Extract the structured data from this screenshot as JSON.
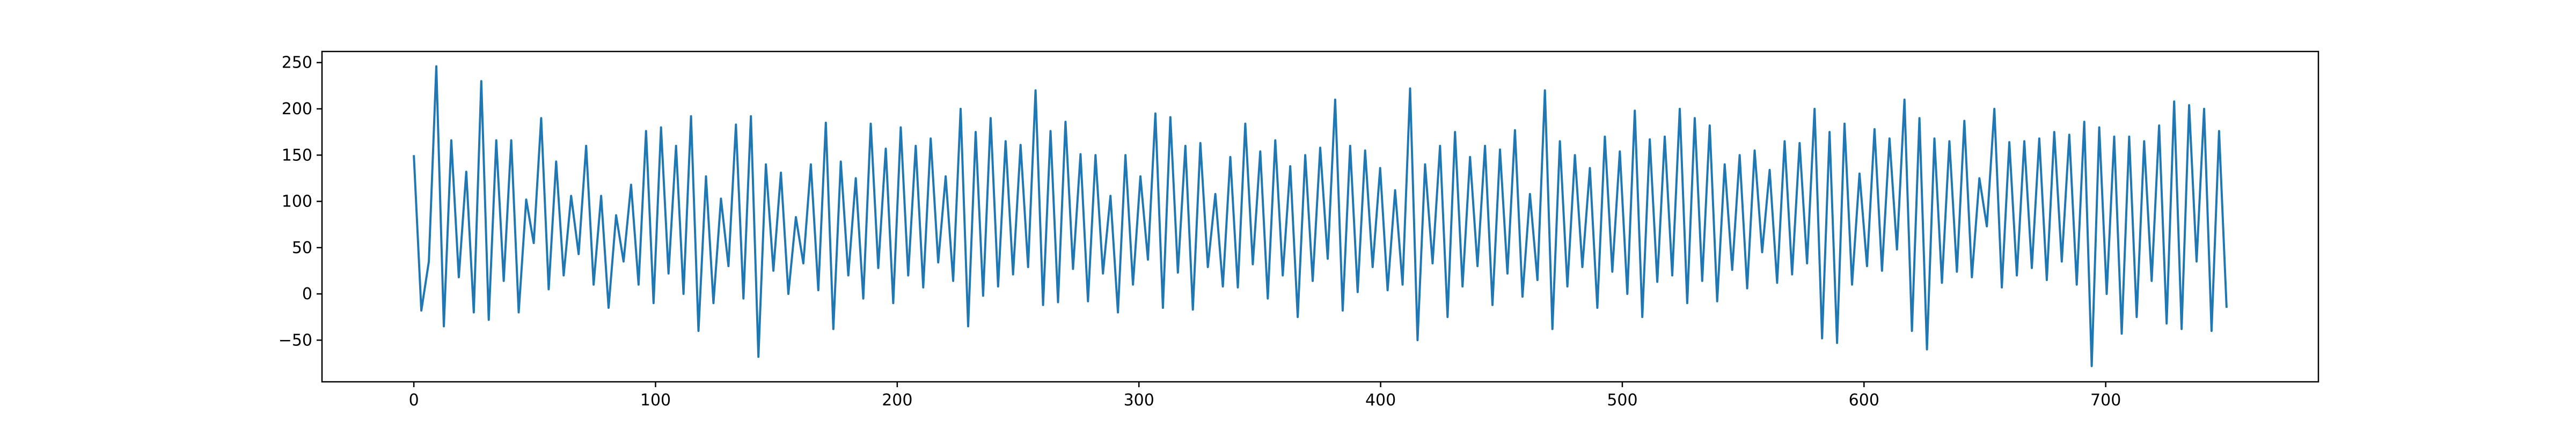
{
  "chart_data": {
    "type": "line",
    "title": "",
    "xlabel": "",
    "ylabel": "",
    "xlim": [
      -38,
      788
    ],
    "ylim": [
      -95,
      262
    ],
    "x_ticks": [
      0,
      100,
      200,
      300,
      400,
      500,
      600,
      700
    ],
    "y_ticks": [
      -50,
      0,
      50,
      100,
      150,
      200,
      250
    ],
    "grid": false,
    "legend": "none",
    "line_color": "#1f77b4",
    "series": [
      {
        "x_start": 0,
        "x_step": 1,
        "values": [
          150,
          -18,
          35,
          246,
          -35,
          166,
          18,
          132,
          -20,
          230,
          -28,
          166,
          14,
          166,
          -20,
          102,
          55,
          190,
          5,
          143,
          20,
          106,
          43,
          160,
          10,
          106,
          -15,
          85,
          35,
          118,
          10,
          176,
          -10,
          180,
          22,
          160,
          0,
          192,
          -40,
          127,
          -10,
          103,
          30,
          183,
          -5,
          192,
          -68,
          140,
          25,
          131,
          0,
          83,
          33,
          140,
          4,
          185,
          -38,
          143,
          20,
          125,
          -5,
          184,
          28,
          157,
          -10,
          180,
          20,
          160,
          7,
          168,
          34,
          127,
          14,
          200,
          -35,
          175,
          -2,
          190,
          8,
          165,
          21,
          161,
          29,
          220,
          -12,
          176,
          -9,
          186,
          27,
          151,
          -8,
          150,
          22,
          106,
          -20,
          150,
          10,
          127,
          37,
          195,
          -15,
          191,
          23,
          160,
          -17,
          163,
          29,
          108,
          8,
          148,
          7,
          184,
          32,
          154,
          -5,
          166,
          20,
          138,
          -25,
          150,
          14,
          158,
          38,
          210,
          -18,
          160,
          2,
          155,
          29,
          136,
          4,
          112,
          10,
          222,
          -50,
          140,
          33,
          160,
          -25,
          175,
          8,
          148,
          30,
          160,
          -12,
          156,
          22,
          177,
          -3,
          108,
          15,
          220,
          -38,
          165,
          8,
          150,
          29,
          136,
          -15,
          170,
          24,
          154,
          0,
          198,
          -25,
          167,
          13,
          170,
          20,
          200,
          -10,
          190,
          14,
          182,
          -8,
          140,
          26,
          150,
          6,
          155,
          45,
          134,
          12,
          165,
          21,
          163,
          33,
          200,
          -48,
          175,
          -53,
          184,
          10,
          130,
          30,
          178,
          25,
          168,
          48,
          210,
          -40,
          190,
          -60,
          168,
          12,
          165,
          24,
          187,
          18,
          125,
          73,
          200,
          7,
          164,
          20,
          165,
          28,
          168,
          15,
          175,
          35,
          172,
          10,
          186,
          -78,
          180,
          0,
          170,
          -43,
          170,
          -25,
          165,
          14,
          182,
          -32,
          208,
          -38,
          204,
          35,
          200,
          -40,
          176,
          -15
        ]
      }
    ]
  }
}
